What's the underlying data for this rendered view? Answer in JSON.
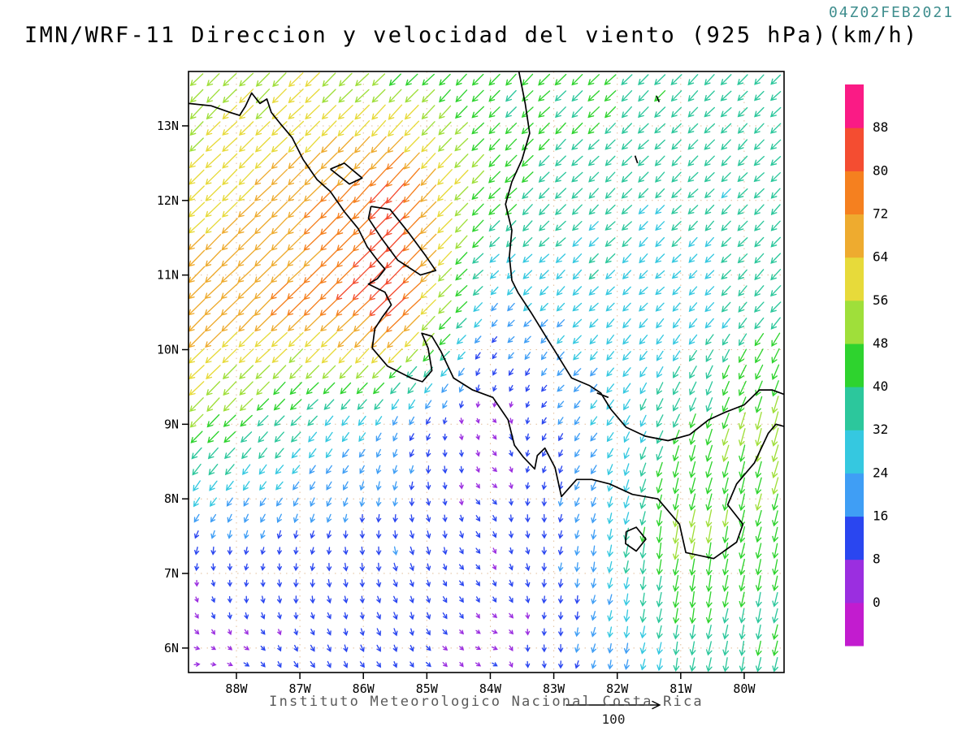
{
  "header": {
    "datetime": "04Z02FEB2021",
    "title": "IMN/WRF-11 Direccion y velocidad del viento (925 hPa)(km/h)"
  },
  "footer": {
    "credit": "Instituto Meteorologico Nacional Costa Rica",
    "reference_vector_label": "100"
  },
  "chart_data": {
    "type": "vector_field",
    "model": "IMN/WRF-11",
    "variable": "Direccion y velocidad del viento",
    "level": "925 hPa",
    "units": "km/h",
    "valid_time": "04Z02FEB2021",
    "title": "IMN/WRF-11 Direccion y velocidad del viento (925 hPa)(km/h)",
    "lon_range": [
      -88.755,
      -79.372
    ],
    "lat_range": [
      5.672,
      13.729
    ],
    "x_tick_lons": [
      -88,
      -87,
      -86,
      -85,
      -84,
      -83,
      -82,
      -81,
      -80
    ],
    "x_tick_labels": [
      "88W",
      "87W",
      "86W",
      "85W",
      "84W",
      "83W",
      "82W",
      "81W",
      "80W"
    ],
    "y_tick_lats": [
      6,
      7,
      8,
      9,
      10,
      11,
      12,
      13
    ],
    "y_tick_labels": [
      "6N",
      "7N",
      "8N",
      "9N",
      "10N",
      "11N",
      "12N",
      "13N"
    ],
    "graticule_color": "#cc8844",
    "coast_color": "#000000",
    "colorbar": {
      "levels": [
        0,
        8,
        16,
        24,
        32,
        40,
        48,
        56,
        64,
        72,
        80,
        88
      ],
      "labels_top_to_bottom": [
        "88",
        "80",
        "72",
        "64",
        "56",
        "48",
        "40",
        "32",
        "24",
        "16",
        "8",
        "0"
      ],
      "colors_low_to_high": [
        "#c21ccf",
        "#9b2ee0",
        "#2a46f0",
        "#3f9ef5",
        "#35c8e0",
        "#2cc79c",
        "#2ed32e",
        "#9fdf3a",
        "#e7da3a",
        "#eeab2f",
        "#f5801f",
        "#f44d31",
        "#fa1b85"
      ]
    },
    "reference_vector": {
      "speed": 100,
      "label": "100"
    },
    "wind_grid": {
      "note": "u eastward km/h, v northward km/h; rows ordered north to south",
      "lons": [
        -88.6,
        -87.0,
        -85.5,
        -84.0,
        -82.5,
        -81.0,
        -79.5
      ],
      "lats": [
        13.7,
        12.2,
        10.6,
        9.0,
        7.4,
        5.8
      ],
      "u": [
        [
          -35,
          -40,
          -32,
          -28,
          -30,
          -27,
          -25
        ],
        [
          -43,
          -48,
          -54,
          -32,
          -26,
          -24,
          -24
        ],
        [
          -50,
          -52,
          -62,
          -15,
          -21,
          -18,
          -25
        ],
        [
          -36,
          -24,
          -10,
          5,
          -14,
          -15,
          -14
        ],
        [
          -2,
          -3,
          3,
          5,
          -4,
          -8,
          -10
        ],
        [
          6,
          6,
          5,
          6,
          -4,
          -6,
          -8
        ]
      ],
      "v": [
        [
          -35,
          -38,
          -32,
          -28,
          -30,
          -27,
          -25
        ],
        [
          -42,
          -48,
          -60,
          -32,
          -25,
          -24,
          -24
        ],
        [
          -49,
          -50,
          -60,
          -15,
          -21,
          -18,
          -28
        ],
        [
          -36,
          -25,
          -17,
          -3,
          -16,
          -38,
          -52
        ],
        [
          -13,
          -13,
          -15,
          -8,
          -19,
          -52,
          -40
        ],
        [
          -1,
          -9,
          -10,
          -2,
          -16,
          -33,
          -38
        ]
      ]
    },
    "coastlines": [
      [
        [
          -88.75,
          13.3
        ],
        [
          -88.4,
          13.27
        ],
        [
          -88.1,
          13.18
        ],
        [
          -87.95,
          13.14
        ],
        [
          -87.86,
          13.26
        ],
        [
          -87.76,
          13.44
        ],
        [
          -87.63,
          13.3
        ],
        [
          -87.52,
          13.36
        ],
        [
          -87.45,
          13.18
        ],
        [
          -87.3,
          13.02
        ],
        [
          -87.12,
          12.84
        ],
        [
          -86.95,
          12.55
        ],
        [
          -86.73,
          12.28
        ],
        [
          -86.52,
          12.12
        ],
        [
          -86.3,
          11.85
        ],
        [
          -86.08,
          11.62
        ],
        [
          -85.94,
          11.38
        ],
        [
          -85.78,
          11.2
        ],
        [
          -85.66,
          11.08
        ],
        [
          -85.78,
          10.95
        ],
        [
          -85.92,
          10.88
        ],
        [
          -85.66,
          10.77
        ],
        [
          -85.56,
          10.6
        ],
        [
          -85.7,
          10.44
        ],
        [
          -85.82,
          10.28
        ],
        [
          -85.86,
          10.02
        ],
        [
          -85.62,
          9.78
        ],
        [
          -85.25,
          9.62
        ],
        [
          -85.07,
          9.57
        ],
        [
          -84.92,
          9.72
        ],
        [
          -84.98,
          10.02
        ],
        [
          -85.08,
          10.22
        ],
        [
          -84.92,
          10.18
        ],
        [
          -84.78,
          9.98
        ],
        [
          -84.58,
          9.62
        ],
        [
          -84.28,
          9.46
        ],
        [
          -83.96,
          9.36
        ],
        [
          -83.72,
          9.06
        ],
        [
          -83.62,
          8.72
        ],
        [
          -83.48,
          8.56
        ],
        [
          -83.3,
          8.4
        ],
        [
          -83.26,
          8.58
        ],
        [
          -83.14,
          8.68
        ],
        [
          -82.98,
          8.42
        ],
        [
          -82.88,
          8.03
        ],
        [
          -82.64,
          8.26
        ],
        [
          -82.4,
          8.26
        ],
        [
          -82.12,
          8.2
        ],
        [
          -81.76,
          8.06
        ],
        [
          -81.36,
          8.0
        ],
        [
          -81.02,
          7.66
        ],
        [
          -80.92,
          7.28
        ],
        [
          -80.48,
          7.2
        ],
        [
          -80.12,
          7.42
        ],
        [
          -80.02,
          7.66
        ],
        [
          -80.26,
          7.92
        ],
        [
          -80.12,
          8.2
        ],
        [
          -79.84,
          8.48
        ],
        [
          -79.62,
          8.88
        ],
        [
          -79.5,
          9.0
        ],
        [
          -79.37,
          8.97
        ]
      ],
      [
        [
          -83.55,
          13.73
        ],
        [
          -83.45,
          13.3
        ],
        [
          -83.38,
          12.9
        ],
        [
          -83.5,
          12.55
        ],
        [
          -83.66,
          12.25
        ],
        [
          -83.76,
          11.95
        ],
        [
          -83.66,
          11.6
        ],
        [
          -83.7,
          11.25
        ],
        [
          -83.66,
          10.93
        ],
        [
          -83.56,
          10.76
        ],
        [
          -83.36,
          10.5
        ],
        [
          -83.1,
          10.14
        ],
        [
          -82.98,
          9.98
        ],
        [
          -82.72,
          9.62
        ],
        [
          -82.44,
          9.52
        ],
        [
          -82.26,
          9.42
        ],
        [
          -82.1,
          9.2
        ],
        [
          -81.86,
          8.96
        ],
        [
          -81.56,
          8.84
        ],
        [
          -81.2,
          8.78
        ],
        [
          -80.86,
          8.86
        ],
        [
          -80.56,
          9.06
        ],
        [
          -80.3,
          9.16
        ],
        [
          -80.0,
          9.26
        ],
        [
          -79.76,
          9.46
        ],
        [
          -79.56,
          9.46
        ],
        [
          -79.37,
          9.4
        ]
      ],
      [
        [
          -85.88,
          11.92
        ],
        [
          -85.58,
          11.88
        ],
        [
          -85.28,
          11.56
        ],
        [
          -85.02,
          11.26
        ],
        [
          -84.86,
          11.06
        ],
        [
          -85.1,
          11.0
        ],
        [
          -85.46,
          11.2
        ],
        [
          -85.72,
          11.5
        ],
        [
          -85.92,
          11.76
        ],
        [
          -85.88,
          11.92
        ]
      ],
      [
        [
          -86.52,
          12.42
        ],
        [
          -86.22,
          12.22
        ],
        [
          -86.02,
          12.3
        ],
        [
          -86.3,
          12.5
        ],
        [
          -86.52,
          12.42
        ]
      ],
      [
        [
          -81.86,
          7.56
        ],
        [
          -81.7,
          7.62
        ],
        [
          -81.55,
          7.46
        ],
        [
          -81.7,
          7.3
        ],
        [
          -81.87,
          7.4
        ],
        [
          -81.86,
          7.56
        ]
      ],
      [
        [
          -81.72,
          12.6
        ],
        [
          -81.68,
          12.5
        ]
      ],
      [
        [
          -81.38,
          13.4
        ],
        [
          -81.34,
          13.32
        ]
      ],
      [
        [
          -82.32,
          9.42
        ],
        [
          -82.14,
          9.36
        ]
      ]
    ],
    "text_colors": {
      "title": "#000000",
      "datetime": "#3f8e8e",
      "credit": "#5a5a5a"
    }
  }
}
